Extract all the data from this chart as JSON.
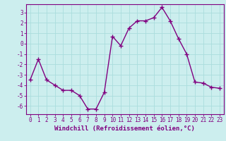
{
  "x": [
    0,
    1,
    2,
    3,
    4,
    5,
    6,
    7,
    8,
    9,
    10,
    11,
    12,
    13,
    14,
    15,
    16,
    17,
    18,
    19,
    20,
    21,
    22,
    23
  ],
  "y": [
    -3.5,
    -1.5,
    -3.5,
    -4.0,
    -4.5,
    -4.5,
    -5.0,
    -6.3,
    -6.3,
    -4.7,
    0.7,
    -0.2,
    1.5,
    2.2,
    2.2,
    2.5,
    3.5,
    2.2,
    0.5,
    -1.0,
    -3.7,
    -3.8,
    -4.2,
    -4.3
  ],
  "xlabel": "Windchill (Refroidissement éolien,°C)",
  "xlim": [
    -0.5,
    23.5
  ],
  "ylim": [
    -6.8,
    3.8
  ],
  "yticks": [
    -6,
    -5,
    -4,
    -3,
    -2,
    -1,
    0,
    1,
    2,
    3
  ],
  "xticks": [
    0,
    1,
    2,
    3,
    4,
    5,
    6,
    7,
    8,
    9,
    10,
    11,
    12,
    13,
    14,
    15,
    16,
    17,
    18,
    19,
    20,
    21,
    22,
    23
  ],
  "line_color": "#800080",
  "bg_color": "#cceeee",
  "grid_color": "#aadddd",
  "marker": "+",
  "linewidth": 1.0,
  "markersize": 4,
  "tick_label_fontsize": 5.5,
  "xlabel_fontsize": 6.5
}
